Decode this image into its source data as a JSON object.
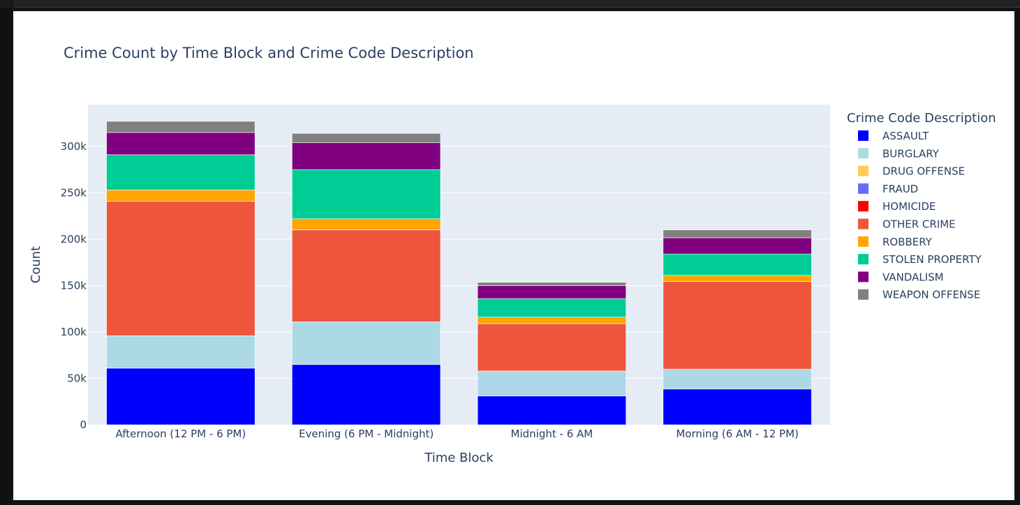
{
  "chart_data": {
    "type": "bar",
    "stacked": true,
    "title": "Crime Count by Time Block and Crime Code Description",
    "xlabel": "Time Block",
    "ylabel": "Count",
    "ylim": [
      0,
      345000
    ],
    "yticks": [
      0,
      50000,
      100000,
      150000,
      200000,
      250000,
      300000
    ],
    "ytick_labels": [
      "0",
      "50k",
      "100k",
      "150k",
      "200k",
      "250k",
      "300k"
    ],
    "categories": [
      "Afternoon (12 PM - 6 PM)",
      "Evening (6 PM - Midnight)",
      "Midnight - 6 AM",
      "Morning (6 AM - 12 PM)"
    ],
    "legend_title": "Crime Code Description",
    "legend_position": "right",
    "grid": true,
    "plot_bgcolor": "#e5ecf6",
    "series": [
      {
        "name": "ASSAULT",
        "color": "#0000ff",
        "values": [
          61000,
          65000,
          31000,
          38500
        ]
      },
      {
        "name": "BURGLARY",
        "color": "#add8e6",
        "values": [
          35000,
          46000,
          27000,
          21500
        ]
      },
      {
        "name": "DRUG OFFENSE",
        "color": "#ffcc55",
        "values": [
          0,
          0,
          0,
          0
        ]
      },
      {
        "name": "FRAUD",
        "color": "#636efa",
        "values": [
          0,
          0,
          0,
          0
        ]
      },
      {
        "name": "HOMICIDE",
        "color": "#ff0000",
        "values": [
          0,
          0,
          0,
          0
        ]
      },
      {
        "name": "OTHER CRIME",
        "color": "#ef553b",
        "values": [
          145000,
          99000,
          51000,
          94500
        ]
      },
      {
        "name": "ROBBERY",
        "color": "#ffa500",
        "values": [
          12000,
          12000,
          7000,
          6500
        ]
      },
      {
        "name": "STOLEN PROPERTY",
        "color": "#00cc96",
        "values": [
          38000,
          53000,
          20000,
          23000
        ]
      },
      {
        "name": "VANDALISM",
        "color": "#800080",
        "values": [
          24000,
          29000,
          14000,
          17500
        ]
      },
      {
        "name": "WEAPON OFFENSE",
        "color": "#808080",
        "values": [
          12000,
          10000,
          3500,
          8500
        ]
      }
    ]
  }
}
